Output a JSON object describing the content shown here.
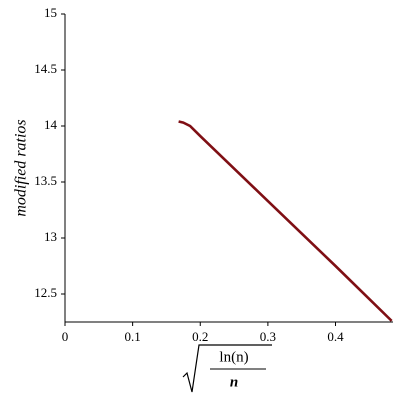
{
  "chart_data": {
    "type": "line",
    "y_label": "modified ratios",
    "x_label": {
      "numerator": "ln(n)",
      "denominator": "n"
    },
    "series": [
      {
        "color": "#7f0f14",
        "x": [
          0.168,
          0.175,
          0.185,
          0.2,
          0.3,
          0.4,
          0.483
        ],
        "values": [
          14.04,
          14.03,
          14.0,
          13.91,
          13.33,
          12.75,
          12.26
        ]
      }
    ],
    "xlim": [
      0,
      0.485
    ],
    "xticks": [
      0,
      0.1,
      0.2,
      0.3,
      0.4
    ],
    "ylim": [
      12.25,
      15
    ],
    "yticks": [
      12.5,
      13,
      13.5,
      14,
      14.5,
      15
    ]
  }
}
